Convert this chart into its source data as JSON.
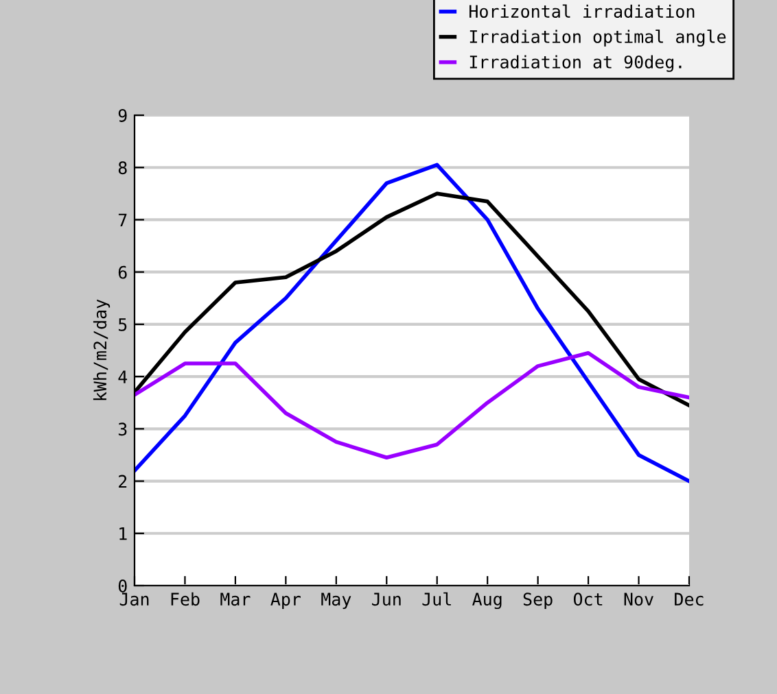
{
  "chart_data": {
    "type": "line",
    "ylabel": "kWh/m2/day",
    "categories": [
      "Jan",
      "Feb",
      "Mar",
      "Apr",
      "May",
      "Jun",
      "Jul",
      "Aug",
      "Sep",
      "Oct",
      "Nov",
      "Dec"
    ],
    "series": [
      {
        "name": "Horizontal irradiation",
        "color": "#0000ff",
        "values": [
          2.2,
          3.25,
          4.65,
          5.5,
          6.6,
          7.7,
          8.05,
          7.0,
          5.3,
          3.9,
          2.5,
          2.0
        ]
      },
      {
        "name": "Irradiation optimal angle",
        "color": "#000000",
        "values": [
          3.7,
          4.85,
          5.8,
          5.9,
          6.4,
          7.05,
          7.5,
          7.35,
          6.3,
          5.25,
          3.95,
          3.45
        ]
      },
      {
        "name": "Irradiation at 90deg.",
        "color": "#9900ff",
        "values": [
          3.65,
          4.25,
          4.25,
          3.3,
          2.75,
          2.45,
          2.7,
          3.5,
          4.2,
          4.45,
          3.8,
          3.6
        ]
      }
    ],
    "ylim": [
      0,
      9
    ],
    "yticks": [
      0,
      1,
      2,
      3,
      4,
      5,
      6,
      7,
      8,
      9
    ],
    "grid": "y",
    "legend": "top right",
    "marker": "none",
    "line_style": "solid"
  }
}
